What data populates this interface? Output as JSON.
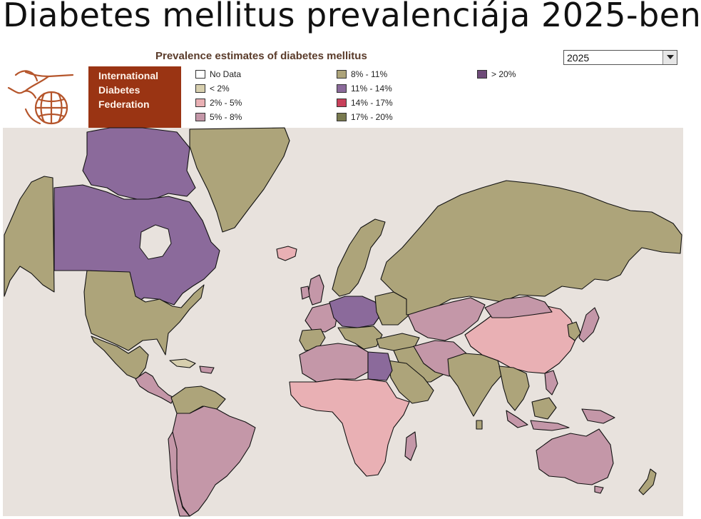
{
  "slide_title": "Diabetes mellitus prevalenciája 2025-ben",
  "header": {
    "title": "Prevalence estimates of diabetes mellitus",
    "year_select": {
      "value": "2025",
      "icon": "chevron-down-icon"
    }
  },
  "logo": {
    "icon": "bird-globe-logo-icon",
    "org_lines": [
      "International",
      "Diabetes",
      "Federation"
    ]
  },
  "legend": [
    {
      "label": "No Data",
      "color": "#ffffff"
    },
    {
      "label": "< 2%",
      "color": "#d7cfae"
    },
    {
      "label": "2% - 5%",
      "color": "#e9b0b4"
    },
    {
      "label": "5% - 8%",
      "color": "#c497a8"
    },
    {
      "label": "8% - 11%",
      "color": "#ada47a"
    },
    {
      "label": "11% - 14%",
      "color": "#8b6a9b"
    },
    {
      "label": "14% - 17%",
      "color": "#c8405a"
    },
    {
      "label": "17% - 20%",
      "color": "#797a4f"
    },
    {
      "label": "> 20%",
      "color": "#6e4a78"
    }
  ],
  "map": {
    "ocean_color": "#e8e2dd",
    "border_color": "#111111"
  }
}
